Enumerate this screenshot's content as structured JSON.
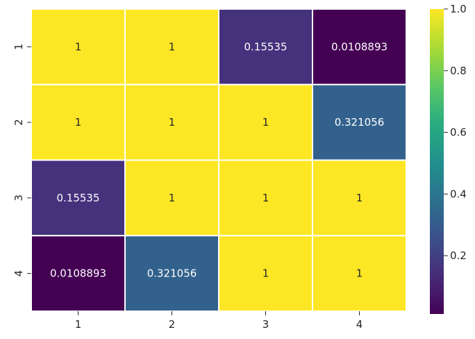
{
  "chart_data": {
    "type": "heatmap",
    "title": "",
    "xlabel": "",
    "ylabel": "",
    "x_categories": [
      "1",
      "2",
      "3",
      "4"
    ],
    "y_categories": [
      "1",
      "2",
      "3",
      "4"
    ],
    "values": [
      [
        1,
        1,
        0.15535,
        0.0108893
      ],
      [
        1,
        1,
        1,
        0.321056
      ],
      [
        0.15535,
        1,
        1,
        1
      ],
      [
        0.0108893,
        0.321056,
        1,
        1
      ]
    ],
    "value_labels": [
      [
        "1",
        "1",
        "0.15535",
        "0.0108893"
      ],
      [
        "1",
        "1",
        "1",
        "0.321056"
      ],
      [
        "0.15535",
        "1",
        "1",
        "1"
      ],
      [
        "0.0108893",
        "0.321056",
        "1",
        "1"
      ]
    ],
    "colormap": "viridis",
    "color_range": [
      0.0108893,
      1.0
    ],
    "colorbar_ticks": [
      0.2,
      0.4,
      0.6,
      0.8,
      1.0
    ],
    "colorbar_tick_labels": [
      "0.2",
      "0.4",
      "0.6",
      "0.8",
      "1.0"
    ],
    "cell_border_color": "#ffffff",
    "legend": "colorbar-right"
  }
}
